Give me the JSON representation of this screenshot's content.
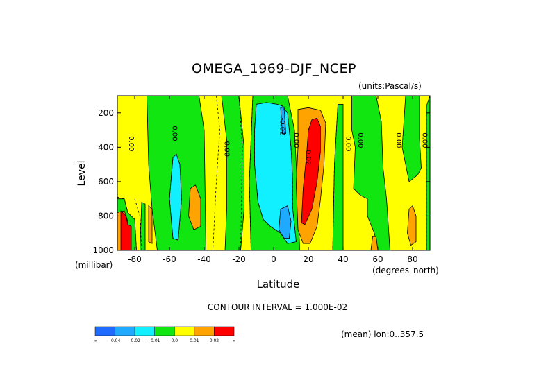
{
  "chart_data": {
    "type": "heatmap",
    "title": "OMEGA_1969-DJF_NCEP",
    "units_label": "(units:Pascal/s)",
    "xlabel": "Latitude",
    "xunits": "(degrees_north)",
    "ylabel": "Level",
    "yunits": "(millibar)",
    "xlim": [
      -90,
      90
    ],
    "ylim": [
      1000,
      100
    ],
    "x_ticks": [
      -80,
      -60,
      -40,
      -20,
      0,
      20,
      40,
      60,
      80
    ],
    "y_ticks": [
      200,
      400,
      600,
      800,
      1000
    ],
    "contour_interval_text": "CONTOUR INTERVAL = 1.000E-02",
    "mean_text": "(mean) lon:0..357.5",
    "colorbar": {
      "colors": [
        "#1f6bff",
        "#1fa9ff",
        "#11f0ff",
        "#11e611",
        "#ffff00",
        "#ffa300",
        "#ff0000"
      ],
      "labels": [
        "-∞",
        "-0.04",
        "-0.02",
        "-0.01",
        "0.0",
        "0.01",
        "0.02",
        "∞"
      ]
    },
    "contour_labels": [
      {
        "text": "0.00",
        "lat": -82,
        "lev": 380
      },
      {
        "text": "0.00",
        "lat": -57,
        "lev": 320
      },
      {
        "text": "0.00",
        "lat": -27,
        "lev": 410
      },
      {
        "text": "-0.02",
        "lat": 5,
        "lev": 280
      },
      {
        "text": "0.00",
        "lat": 13,
        "lev": 360
      },
      {
        "text": "0.02",
        "lat": 20,
        "lev": 460
      },
      {
        "text": "0.00",
        "lat": 43,
        "lev": 380
      },
      {
        "text": "0.00",
        "lat": 50,
        "lev": 360
      },
      {
        "text": "0.00",
        "lat": 72,
        "lev": 360
      },
      {
        "text": "0.00",
        "lat": 87,
        "lev": 360
      }
    ],
    "regions": [
      {
        "class": 3,
        "poly": [
          [
            -73,
            100
          ],
          [
            -43,
            100
          ],
          [
            -40,
            300
          ],
          [
            -39,
            1000
          ],
          [
            -67,
            1000
          ],
          [
            -70,
            760
          ],
          [
            -72,
            500
          ]
        ]
      },
      {
        "class": 3,
        "poly": [
          [
            -30,
            100
          ],
          [
            -20,
            100
          ],
          [
            -17,
            400
          ],
          [
            -17,
            760
          ],
          [
            -19,
            1000
          ],
          [
            -28,
            1000
          ],
          [
            -27,
            750
          ],
          [
            -27,
            360
          ]
        ]
      },
      {
        "class": 3,
        "poly": [
          [
            -12,
            100
          ],
          [
            8,
            100
          ],
          [
            12,
            300
          ],
          [
            14,
            700
          ],
          [
            15,
            1000
          ],
          [
            -13,
            1000
          ],
          [
            -14,
            600
          ]
        ]
      },
      {
        "class": 2,
        "poly": [
          [
            -10,
            150
          ],
          [
            -4,
            140
          ],
          [
            2,
            150
          ],
          [
            5,
            160
          ],
          [
            8,
            200
          ],
          [
            10,
            400
          ],
          [
            11,
            600
          ],
          [
            11,
            760
          ],
          [
            13,
            950
          ],
          [
            8,
            960
          ],
          [
            4,
            900
          ],
          [
            -2,
            860
          ],
          [
            -6,
            820
          ],
          [
            -9,
            720
          ],
          [
            -11,
            500
          ],
          [
            -11,
            300
          ]
        ]
      },
      {
        "class": 1,
        "poly": [
          [
            4,
            760
          ],
          [
            8,
            740
          ],
          [
            10,
            830
          ],
          [
            9,
            930
          ],
          [
            6,
            930
          ],
          [
            3,
            880
          ]
        ]
      },
      {
        "class": 1,
        "poly": [
          [
            4,
            170
          ],
          [
            6,
            165
          ],
          [
            7,
            320
          ],
          [
            5,
            320
          ]
        ]
      },
      {
        "class": 2,
        "poly": [
          [
            -58,
            460
          ],
          [
            -56,
            440
          ],
          [
            -54,
            500
          ],
          [
            -53,
            700
          ],
          [
            -55,
            940
          ],
          [
            -58,
            930
          ],
          [
            -60,
            700
          ]
        ]
      },
      {
        "class": 3,
        "poly": [
          [
            37,
            150
          ],
          [
            40,
            150
          ],
          [
            40,
            1000
          ],
          [
            34,
            1000
          ],
          [
            35,
            500
          ]
        ]
      },
      {
        "class": 3,
        "poly": [
          [
            45,
            100
          ],
          [
            59,
            100
          ],
          [
            62,
            250
          ],
          [
            63,
            520
          ],
          [
            65,
            700
          ],
          [
            67,
            1000
          ],
          [
            60,
            1000
          ],
          [
            58,
            900
          ],
          [
            54,
            800
          ],
          [
            54,
            700
          ],
          [
            50,
            680
          ],
          [
            46,
            640
          ],
          [
            47,
            400
          ],
          [
            45,
            300
          ]
        ]
      },
      {
        "class": 3,
        "poly": [
          [
            76,
            100
          ],
          [
            84,
            100
          ],
          [
            84,
            350
          ],
          [
            85,
            520
          ],
          [
            83,
            560
          ],
          [
            78,
            600
          ],
          [
            76,
            500
          ],
          [
            74,
            400
          ],
          [
            75,
            250
          ]
        ]
      },
      {
        "class": 3,
        "poly": [
          [
            90,
            100
          ],
          [
            90,
            1000
          ],
          [
            88,
            1000
          ],
          [
            88,
            400
          ],
          [
            88,
            160
          ]
        ]
      },
      {
        "class": 3,
        "poly": [
          [
            -90,
            700
          ],
          [
            -86,
            700
          ],
          [
            -84,
            780
          ],
          [
            -80,
            820
          ],
          [
            -79,
            1000
          ],
          [
            -90,
            1000
          ]
        ]
      },
      {
        "class": 3,
        "poly": [
          [
            -76,
            720
          ],
          [
            -74,
            730
          ],
          [
            -74,
            1000
          ],
          [
            -77,
            1000
          ]
        ]
      },
      {
        "class": 5,
        "poly": [
          [
            -90,
            780
          ],
          [
            -86,
            770
          ],
          [
            -84,
            830
          ],
          [
            -83,
            1000
          ],
          [
            -90,
            1000
          ]
        ]
      },
      {
        "class": 6,
        "poly": [
          [
            -88,
            770
          ],
          [
            -85,
            800
          ],
          [
            -84,
            850
          ],
          [
            -82,
            860
          ],
          [
            -82,
            1000
          ],
          [
            -88,
            1000
          ]
        ]
      },
      {
        "class": 5,
        "poly": [
          [
            -72,
            740
          ],
          [
            -70,
            760
          ],
          [
            -70,
            960
          ],
          [
            -72,
            950
          ]
        ]
      },
      {
        "class": 5,
        "poly": [
          [
            -48,
            640
          ],
          [
            -45,
            620
          ],
          [
            -42,
            700
          ],
          [
            -42,
            860
          ],
          [
            -46,
            880
          ],
          [
            -49,
            800
          ]
        ]
      },
      {
        "class": 5,
        "poly": [
          [
            14,
            180
          ],
          [
            20,
            170
          ],
          [
            27,
            185
          ],
          [
            30,
            260
          ],
          [
            29,
            500
          ],
          [
            27,
            700
          ],
          [
            25,
            860
          ],
          [
            21,
            960
          ],
          [
            17,
            960
          ],
          [
            14,
            880
          ],
          [
            13,
            620
          ],
          [
            14,
            400
          ]
        ]
      },
      {
        "class": 6,
        "poly": [
          [
            22,
            240
          ],
          [
            25,
            230
          ],
          [
            27,
            280
          ],
          [
            27,
            420
          ],
          [
            25,
            600
          ],
          [
            22,
            760
          ],
          [
            18,
            850
          ],
          [
            16,
            840
          ],
          [
            17,
            640
          ],
          [
            19,
            440
          ],
          [
            20,
            300
          ]
        ]
      },
      {
        "class": 5,
        "poly": [
          [
            78,
            760
          ],
          [
            80,
            740
          ],
          [
            82,
            800
          ],
          [
            82,
            950
          ],
          [
            79,
            970
          ],
          [
            77,
            900
          ]
        ]
      },
      {
        "class": 5,
        "poly": [
          [
            57,
            920
          ],
          [
            59,
            920
          ],
          [
            60,
            1000
          ],
          [
            56,
            1000
          ]
        ]
      }
    ],
    "dashed_contours": [
      [
        [
          -58,
          460
        ],
        [
          -56,
          440
        ],
        [
          -54,
          500
        ],
        [
          -53,
          700
        ],
        [
          -55,
          940
        ],
        [
          -58,
          930
        ],
        [
          -60,
          700
        ],
        [
          -58,
          460
        ]
      ],
      [
        [
          -10,
          150
        ],
        [
          -4,
          140
        ],
        [
          2,
          150
        ],
        [
          5,
          160
        ],
        [
          8,
          200
        ],
        [
          10,
          400
        ],
        [
          11,
          600
        ],
        [
          11,
          760
        ],
        [
          13,
          950
        ],
        [
          8,
          960
        ],
        [
          4,
          900
        ],
        [
          -2,
          860
        ],
        [
          -6,
          820
        ],
        [
          -9,
          720
        ],
        [
          -11,
          500
        ],
        [
          -11,
          300
        ],
        [
          -10,
          150
        ]
      ],
      [
        [
          4,
          170
        ],
        [
          6,
          165
        ],
        [
          7,
          320
        ],
        [
          5,
          320
        ],
        [
          4,
          170
        ]
      ],
      [
        [
          -33,
          100
        ],
        [
          -31,
          300
        ],
        [
          -33,
          600
        ],
        [
          -34,
          800
        ],
        [
          -35,
          1000
        ]
      ],
      [
        [
          -20,
          100
        ],
        [
          -18,
          400
        ],
        [
          -19,
          1000
        ]
      ],
      [
        [
          -12,
          100
        ],
        [
          -14,
          600
        ],
        [
          -13,
          1000
        ]
      ],
      [
        [
          37,
          150
        ],
        [
          35,
          500
        ],
        [
          34,
          1000
        ]
      ],
      [
        [
          88,
          160
        ],
        [
          88,
          400
        ],
        [
          88,
          1000
        ]
      ],
      [
        [
          -80,
          700
        ],
        [
          -77,
          800
        ],
        [
          -76,
          1000
        ]
      ],
      [
        [
          -90,
          690
        ],
        [
          -86,
          700
        ],
        [
          -84,
          780
        ],
        [
          -80,
          820
        ],
        [
          -79,
          1000
        ]
      ]
    ]
  }
}
